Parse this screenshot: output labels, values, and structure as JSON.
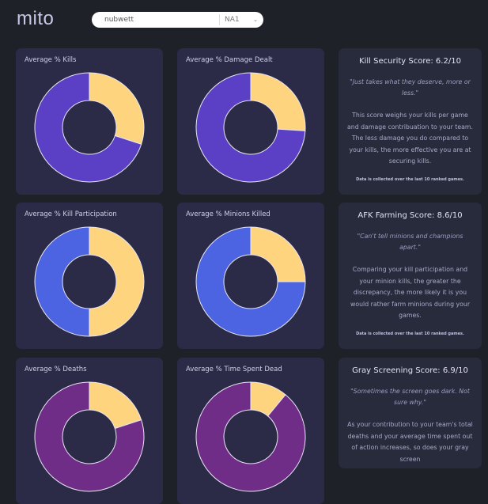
{
  "header": {
    "logo": "mito",
    "search_value": "nubwett",
    "region": "NA1",
    "chevron": "chevron-down-icon"
  },
  "colors": {
    "yellow": "#ffd47f",
    "purple_blue": "#5b40c6",
    "blue": "#4c64e2",
    "purple": "#6f2d87"
  },
  "charts": [
    {
      "title": "Average % Kills",
      "player_share": 0.3,
      "color": "#5b40c6"
    },
    {
      "title": "Average % Damage Dealt",
      "player_share": 0.26,
      "color": "#5b40c6"
    },
    {
      "title": "Average % Kill Participation",
      "player_share": 0.5,
      "color": "#4c64e2"
    },
    {
      "title": "Average % Minions Killed",
      "player_share": 0.25,
      "color": "#4c64e2"
    },
    {
      "title": "Average % Deaths",
      "player_share": 0.2,
      "color": "#6f2d87"
    },
    {
      "title": "Average % Time Spent Dead",
      "player_share": 0.11,
      "color": "#6f2d87"
    }
  ],
  "scores": [
    {
      "title": "Kill Security Score: 6.2/10",
      "quote": "\"Just takes what they deserve, more or less.\"",
      "desc": "This score weighs your kills per game and damage contribuation to your team. The less damage you do compared to your kills, the more effective you are at securing kills.",
      "note": "Data is collected over the last 10 ranked games."
    },
    {
      "title": "AFK Farming Score: 8.6/10",
      "quote": "\"Can't tell minions and champions apart.\"",
      "desc": "Comparing your kill participation and your minion kills, the greater the discrepancy, the more likely it is you would rather farm minions during your games.",
      "note": "Data is collected over the last 10 ranked games."
    },
    {
      "title": "Gray Screening Score: 6.9/10",
      "quote": "\"Sometimes the screen goes dark. Not sure why.\"",
      "desc": "As your contribution to your team's total deaths and your average time spent out of action increases, so does your gray screen"
    }
  ]
}
